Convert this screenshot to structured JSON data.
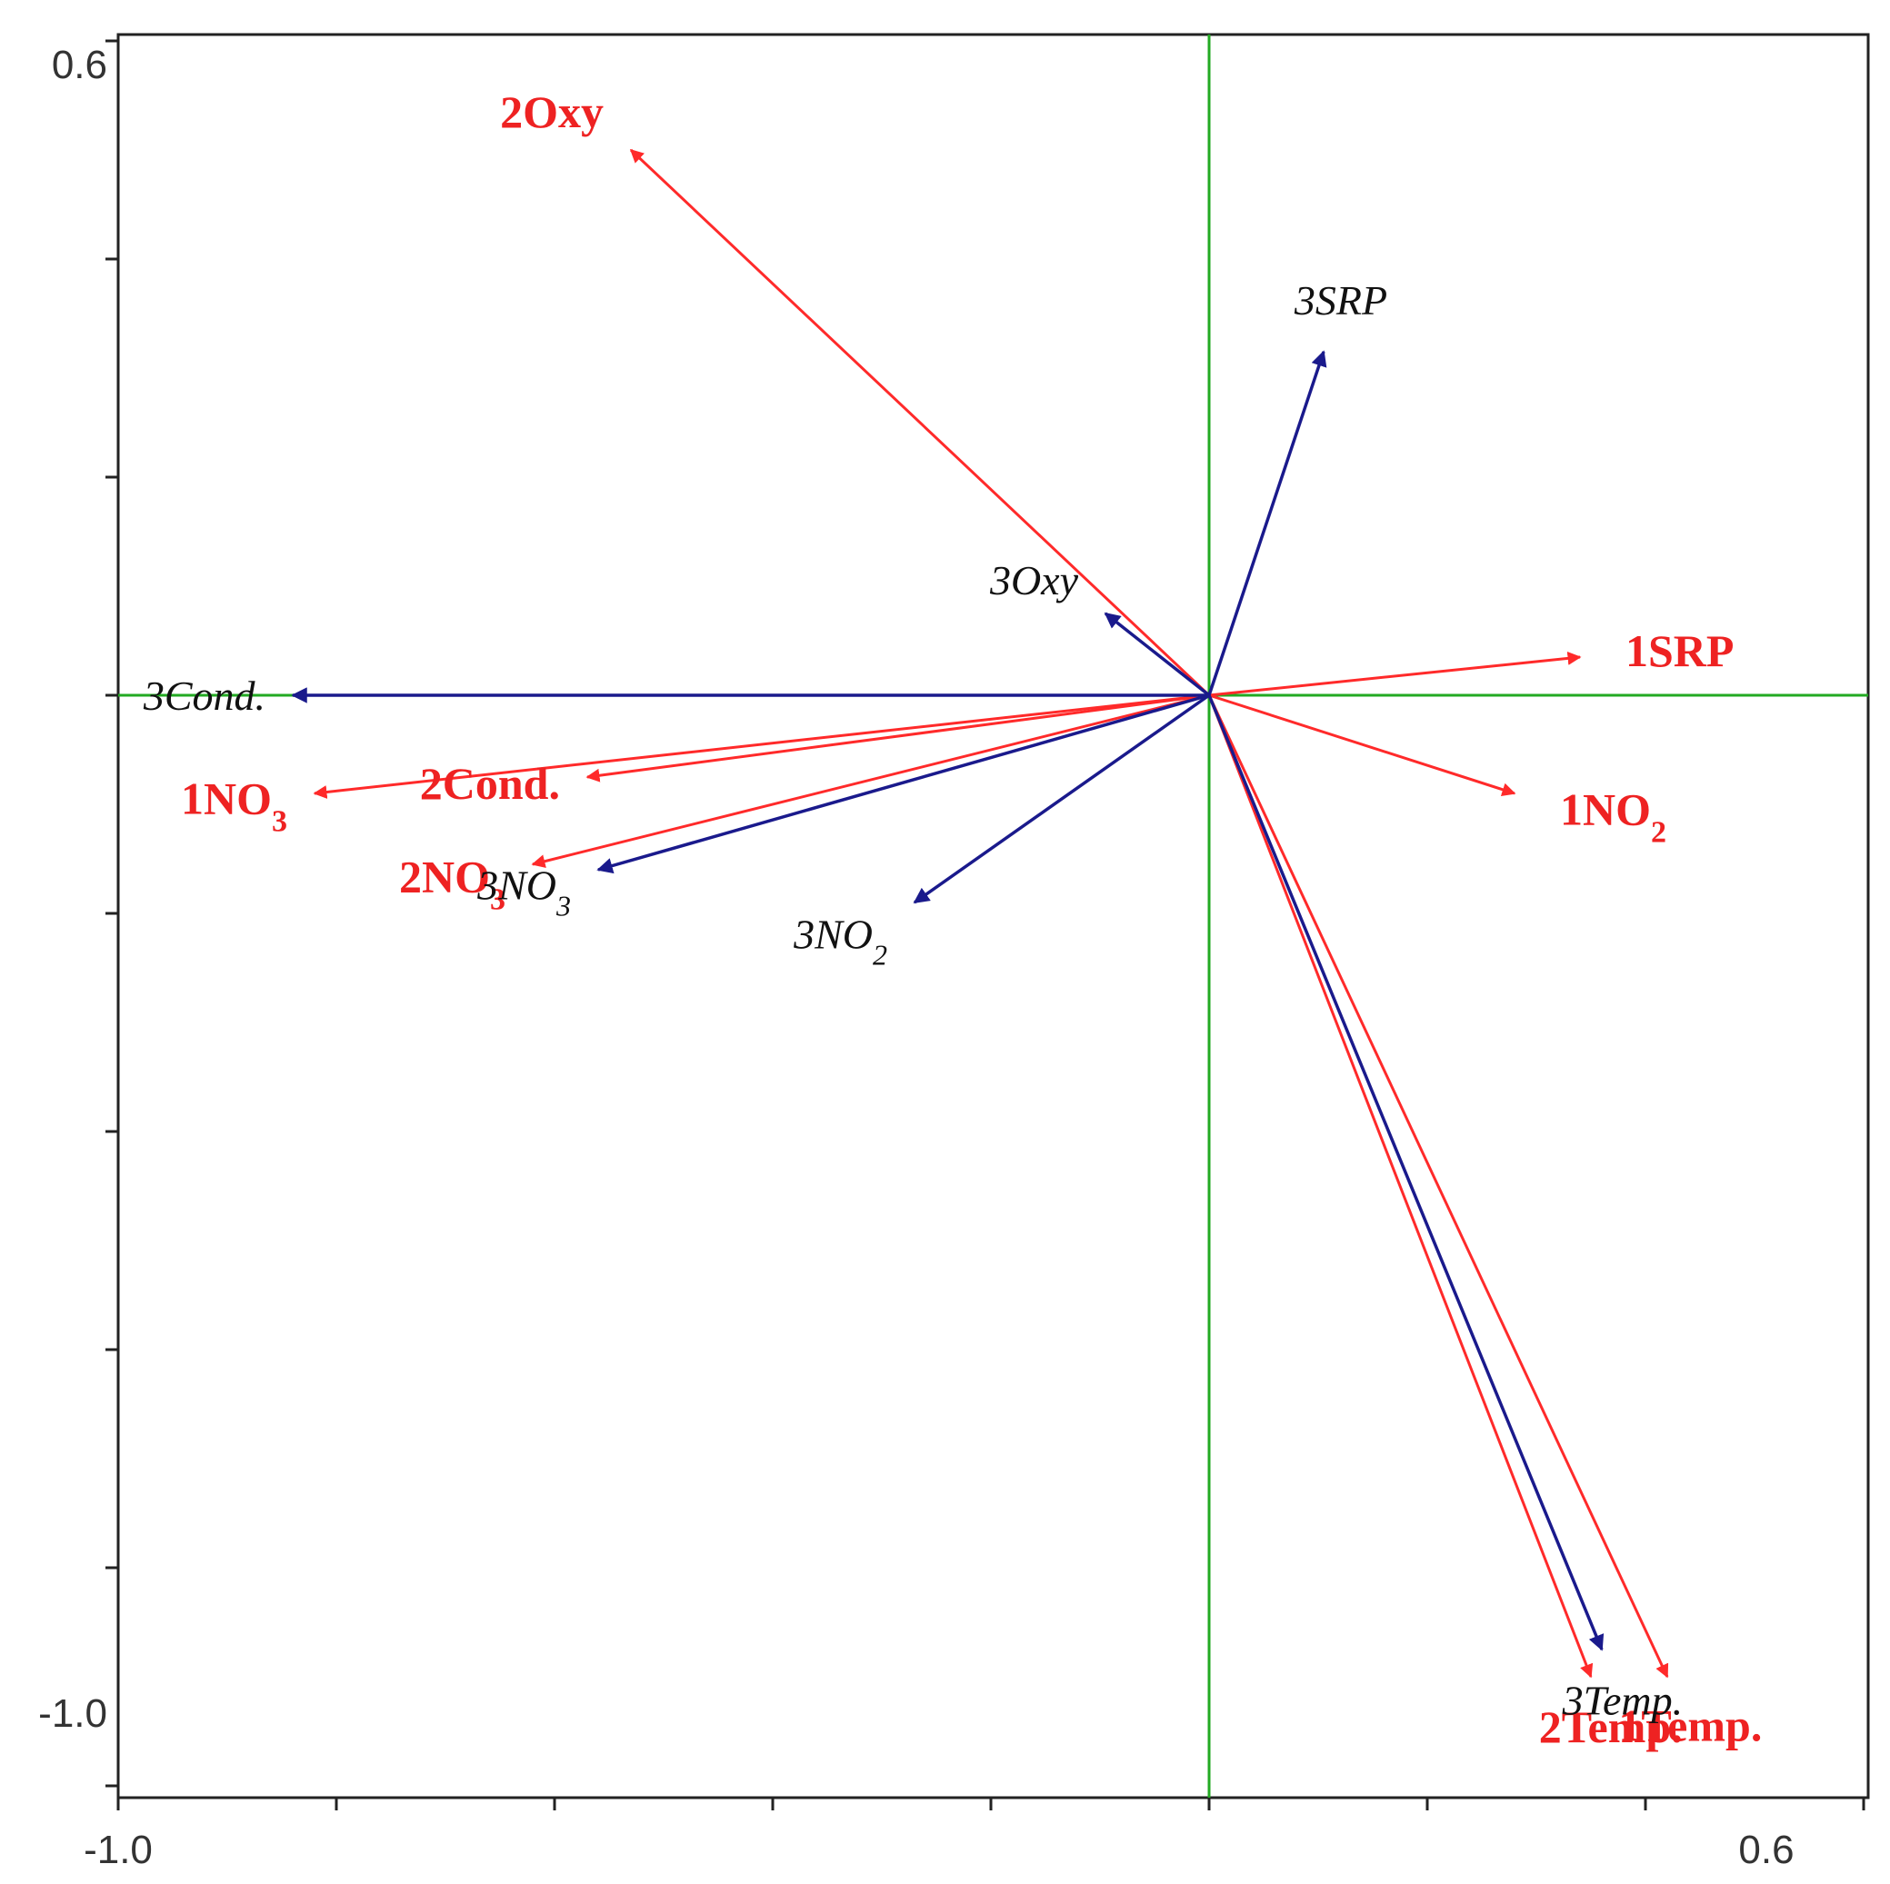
{
  "chart_data": {
    "type": "biplot",
    "title": "",
    "xlabel": "",
    "ylabel": "",
    "xlim": [
      -1.0,
      0.6
    ],
    "ylim": [
      -1.0,
      0.6
    ],
    "x_tick_labels": [
      "-1.0",
      "0.6"
    ],
    "y_tick_labels": [
      "0.6",
      "-1.0"
    ],
    "colors": {
      "red_vectors": "#ff2a2a",
      "blue_vectors": "#1a1a8c",
      "zero_lines": "#22aa22",
      "frame": "#222222"
    },
    "vectors": [
      {
        "label": "2Oxy",
        "group": "red",
        "x": -0.53,
        "y": 0.5
      },
      {
        "label": "1SRP",
        "group": "red",
        "x": 0.34,
        "y": 0.035
      },
      {
        "label": "1NO",
        "sub": "3",
        "group": "red",
        "x": -0.82,
        "y": -0.09
      },
      {
        "label": "2Cond.",
        "group": "red",
        "x": -0.57,
        "y": -0.075
      },
      {
        "label": "2NO",
        "sub": "3",
        "group": "red",
        "x": -0.62,
        "y": -0.155
      },
      {
        "label": "1NO",
        "sub": "2",
        "group": "red",
        "x": 0.28,
        "y": -0.09
      },
      {
        "label": "1Temp.",
        "group": "red",
        "x": 0.42,
        "y": -0.9
      },
      {
        "label": "2Temp.",
        "group": "red",
        "x": 0.35,
        "y": -0.9
      },
      {
        "label": "3SRP",
        "group": "blue",
        "x": 0.105,
        "y": 0.315
      },
      {
        "label": "3Oxy",
        "group": "blue",
        "x": -0.095,
        "y": 0.075
      },
      {
        "label": "3Cond.",
        "group": "blue",
        "x": -0.84,
        "y": 0.0
      },
      {
        "label": "3NO",
        "sub": "3",
        "group": "blue",
        "x": -0.56,
        "y": -0.16
      },
      {
        "label": "3NO",
        "sub": "2",
        "group": "blue",
        "x": -0.27,
        "y": -0.19
      },
      {
        "label": "3Temp.",
        "group": "blue",
        "x": 0.36,
        "y": -0.875
      }
    ]
  }
}
